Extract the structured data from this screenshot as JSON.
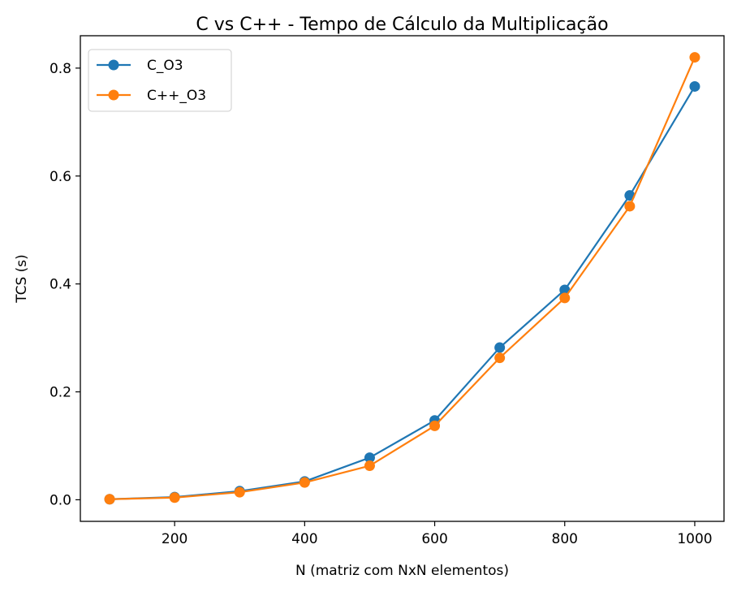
{
  "chart_data": {
    "type": "line",
    "title": "C vs C++ - Tempo de Cálculo da Multiplicação",
    "xlabel": "N (matriz com NxN elementos)",
    "ylabel": "TCS (s)",
    "xlim": [
      55,
      1045
    ],
    "ylim": [
      -0.04,
      0.86
    ],
    "xticks": [
      200,
      400,
      600,
      800,
      1000
    ],
    "yticks": [
      0.0,
      0.2,
      0.4,
      0.6,
      0.8
    ],
    "xtick_labels": [
      "200",
      "400",
      "600",
      "800",
      "1000"
    ],
    "ytick_labels": [
      "0.0",
      "0.2",
      "0.4",
      "0.6",
      "0.8"
    ],
    "grid": false,
    "legend_position": "top-left",
    "x": [
      100,
      200,
      300,
      400,
      500,
      600,
      700,
      800,
      900,
      1000
    ],
    "series": [
      {
        "name": "C_O3",
        "color": "#1f77b4",
        "marker": "circle",
        "values": [
          0.001,
          0.005,
          0.016,
          0.034,
          0.078,
          0.147,
          0.282,
          0.389,
          0.564,
          0.766
        ]
      },
      {
        "name": "C++_O3",
        "color": "#ff7f0e",
        "marker": "circle",
        "values": [
          0.001,
          0.004,
          0.014,
          0.032,
          0.063,
          0.137,
          0.263,
          0.374,
          0.544,
          0.82
        ]
      }
    ]
  }
}
